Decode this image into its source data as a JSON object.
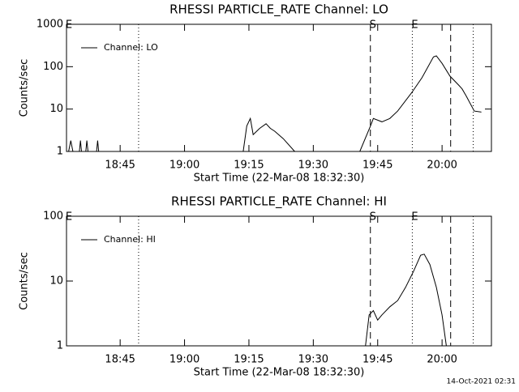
{
  "chart_data": [
    {
      "type": "line",
      "title": "RHESSI PARTICLE_RATE Channel: LO",
      "xlabel": "Start Time (22-Mar-08 18:32:30)",
      "ylabel": "Counts/sec",
      "log_y": true,
      "ylim": [
        1,
        1000
      ],
      "yticks": [
        1,
        10,
        100,
        1000
      ],
      "xlim": [
        "18:32:30",
        "20:11:30"
      ],
      "xticks": [
        "18:45",
        "19:00",
        "19:15",
        "19:30",
        "19:45",
        "20:00"
      ],
      "legend": "upper left",
      "markers": [
        {
          "x": "18:32:30",
          "label": "E"
        },
        {
          "x": "18:49:18",
          "style": "dotted"
        },
        {
          "x": "19:43:18",
          "style": "dashed",
          "label": "S"
        },
        {
          "x": "19:53:04",
          "style": "dotted",
          "label": "E"
        },
        {
          "x": "20:02:00",
          "style": "dashed"
        },
        {
          "x": "20:07:15",
          "style": "dotted"
        }
      ],
      "x": [
        "18:33:00",
        "18:33:30",
        "18:34:00",
        "18:34:30",
        "18:35:30",
        "18:35:45",
        "18:36:00",
        "18:36:30",
        "18:37:00",
        "18:37:15",
        "18:37:30",
        "18:38:00",
        "18:39:30",
        "18:39:45",
        "18:40:00",
        "18:41:00",
        "19:13:40",
        "19:14:30",
        "19:15:20",
        "19:16:00",
        "19:17:30",
        "19:19:00",
        "19:20:00",
        "19:21:00",
        "19:23:00",
        "19:25:40",
        "19:30:00",
        "19:40:50",
        "19:43:20",
        "19:44:00",
        "19:46:00",
        "19:47:50",
        "19:49:40",
        "19:53:00",
        "19:55:20",
        "19:58:00",
        "19:58:40",
        "20:00:00",
        "20:01:50",
        "20:03:50",
        "20:04:40",
        "20:05:40",
        "20:07:30",
        "20:09:10"
      ],
      "series": [
        {
          "name": "Channel: LO",
          "color": "#000000",
          "values": [
            1,
            1.8,
            1,
            null,
            1,
            1.8,
            1,
            null,
            1,
            1.8,
            1,
            null,
            1,
            1.8,
            1,
            null,
            1,
            4,
            6,
            2.5,
            3.5,
            4.5,
            3.5,
            3,
            2,
            1,
            null,
            1,
            4,
            6,
            5,
            6,
            9,
            25,
            55,
            170,
            180,
            120,
            60,
            37,
            30,
            20,
            9,
            8.5
          ]
        }
      ]
    },
    {
      "type": "line",
      "title": "RHESSI PARTICLE_RATE Channel: HI",
      "xlabel": "Start Time (22-Mar-08 18:32:30)",
      "ylabel": "Counts/sec",
      "log_y": true,
      "ylim": [
        1,
        100
      ],
      "yticks": [
        1,
        10,
        100
      ],
      "xlim": [
        "18:32:30",
        "20:11:30"
      ],
      "xticks": [
        "18:45",
        "19:00",
        "19:15",
        "19:30",
        "19:45",
        "20:00"
      ],
      "legend": "upper left",
      "markers": [
        {
          "x": "18:32:30",
          "label": "E"
        },
        {
          "x": "18:49:18",
          "style": "dotted"
        },
        {
          "x": "19:43:18",
          "style": "dashed",
          "label": "S"
        },
        {
          "x": "19:53:04",
          "style": "dotted",
          "label": "E"
        },
        {
          "x": "20:02:00",
          "style": "dashed"
        },
        {
          "x": "20:07:15",
          "style": "dotted"
        }
      ],
      "x": [
        "19:42:10",
        "19:43:00",
        "19:44:00",
        "19:45:00",
        "19:46:00",
        "19:47:50",
        "19:49:40",
        "19:51:30",
        "19:53:20",
        "19:55:00",
        "19:55:50",
        "19:57:10",
        "19:58:40",
        "20:00:00",
        "20:01:00"
      ],
      "series": [
        {
          "name": "Channel: HI",
          "color": "#000000",
          "values": [
            1,
            3,
            3.5,
            2.5,
            3,
            4,
            5,
            8,
            14,
            25,
            26,
            18,
            8,
            3,
            1
          ]
        }
      ]
    }
  ],
  "footer": "14-Oct-2021 02:31"
}
